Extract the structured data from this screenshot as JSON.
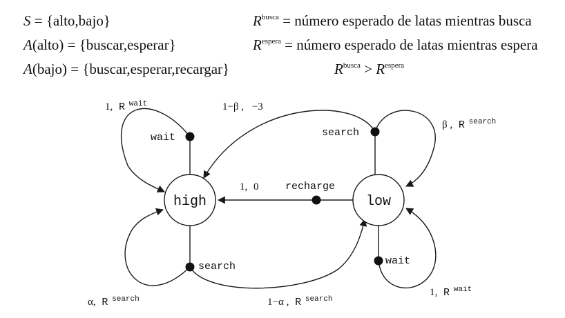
{
  "equations": {
    "states": {
      "lhs": "S",
      "eq": " = ",
      "rhs": "{alto,bajo}"
    },
    "actions_high": {
      "lhs": "A",
      "arg": "(alto)",
      "eq": " = ",
      "rhs": "{buscar,esperar}"
    },
    "actions_low": {
      "lhs": "A",
      "arg": "(bajo)",
      "eq": " = ",
      "rhs": "{buscar,esperar,recargar}"
    },
    "r_search": {
      "lhs": "R",
      "sup": "busca",
      "eq": " = ",
      "rhs": "número esperado de latas mientras busca"
    },
    "r_wait": {
      "lhs": "R",
      "sup": "espera",
      "eq": " = ",
      "rhs": "número esperado de latas mientras espera"
    },
    "inequality": {
      "lhs": "R",
      "lhs_sup": "busca",
      "op": " > ",
      "rhs": "R",
      "rhs_sup": "espera"
    }
  },
  "diagram": {
    "states": {
      "high": "high",
      "low": "low"
    },
    "actions": {
      "wait_high": "wait",
      "search_high": "search",
      "search_low": "search",
      "wait_low": "wait",
      "recharge": "recharge"
    },
    "transitions": {
      "high_wait": {
        "prob": "1,",
        "reward": "R",
        "reward_sup": "wait"
      },
      "low_search_to_high": {
        "prob": "1−β ,",
        "reward": "−3"
      },
      "low_search_self": {
        "prob": "β ,",
        "reward": "R",
        "reward_sup": "search"
      },
      "recharge": {
        "prob": "1,",
        "reward": "0"
      },
      "high_search_self": {
        "prob": "α,",
        "reward": "R",
        "reward_sup": "search"
      },
      "high_search_to_low": {
        "prob": "1−α ,",
        "reward": "R",
        "reward_sup": "search"
      },
      "low_wait": {
        "prob": "1,",
        "reward": "R",
        "reward_sup": "wait"
      }
    }
  }
}
